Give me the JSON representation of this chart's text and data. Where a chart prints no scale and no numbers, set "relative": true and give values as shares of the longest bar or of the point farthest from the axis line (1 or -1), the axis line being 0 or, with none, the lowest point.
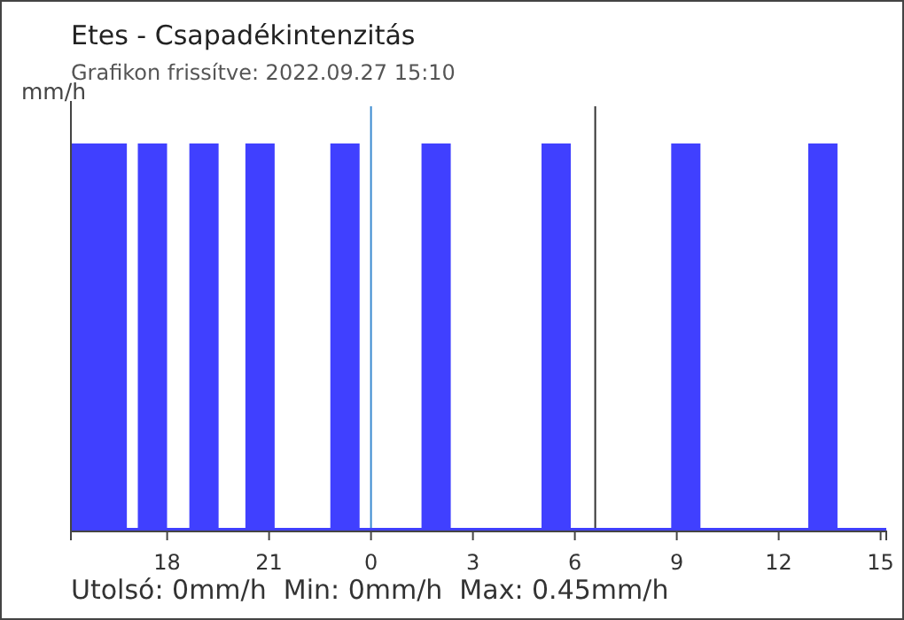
{
  "chart_data": {
    "type": "bar",
    "title": "Etes - Csapadékintenzitás",
    "subtitle": "Grafikon frissítve: 2022.09.27 15:10",
    "ylabel": "mm/h",
    "annotations": [
      "Utolsó: 0mm/h  Min: 0mm/h  Max: 0.45mm/h"
    ],
    "x": [
      "2022-09-26T15:36",
      "2022-09-26T16:23",
      "2022-09-26T17:34",
      "2022-09-26T19:05",
      "2022-09-26T20:44",
      "2022-09-26T23:14",
      "2022-09-27T01:55",
      "2022-09-27T05:27",
      "2022-09-27T09:16",
      "2022-09-27T13:18"
    ],
    "values": [
      1,
      1,
      1,
      1,
      1,
      1,
      1,
      1,
      1,
      1
    ],
    "color": "#4040ff",
    "relative": true,
    "xlim": [
      "2022-09-26T15:10",
      "2022-09-27T15:10"
    ],
    "xticks": [
      {
        "value": "2022-09-26T18:00",
        "label": "18"
      },
      {
        "value": "2022-09-26T21:00",
        "label": "21"
      },
      {
        "value": "2022-09-27T00:00",
        "label": "0"
      },
      {
        "value": "2022-09-27T03:00",
        "label": "3"
      },
      {
        "value": "2022-09-27T06:00",
        "label": "6"
      },
      {
        "value": "2022-09-27T09:00",
        "label": "9"
      },
      {
        "value": "2022-09-27T12:00",
        "label": "12"
      },
      {
        "value": "2022-09-27T15:00",
        "label": "15"
      }
    ],
    "ref_lines": [
      {
        "axis": "x",
        "value": "2022-09-27T00:00",
        "color": "#3a8ad0"
      },
      {
        "axis": "x",
        "value": "2022-09-27T06:36",
        "color": "#333333"
      }
    ]
  }
}
